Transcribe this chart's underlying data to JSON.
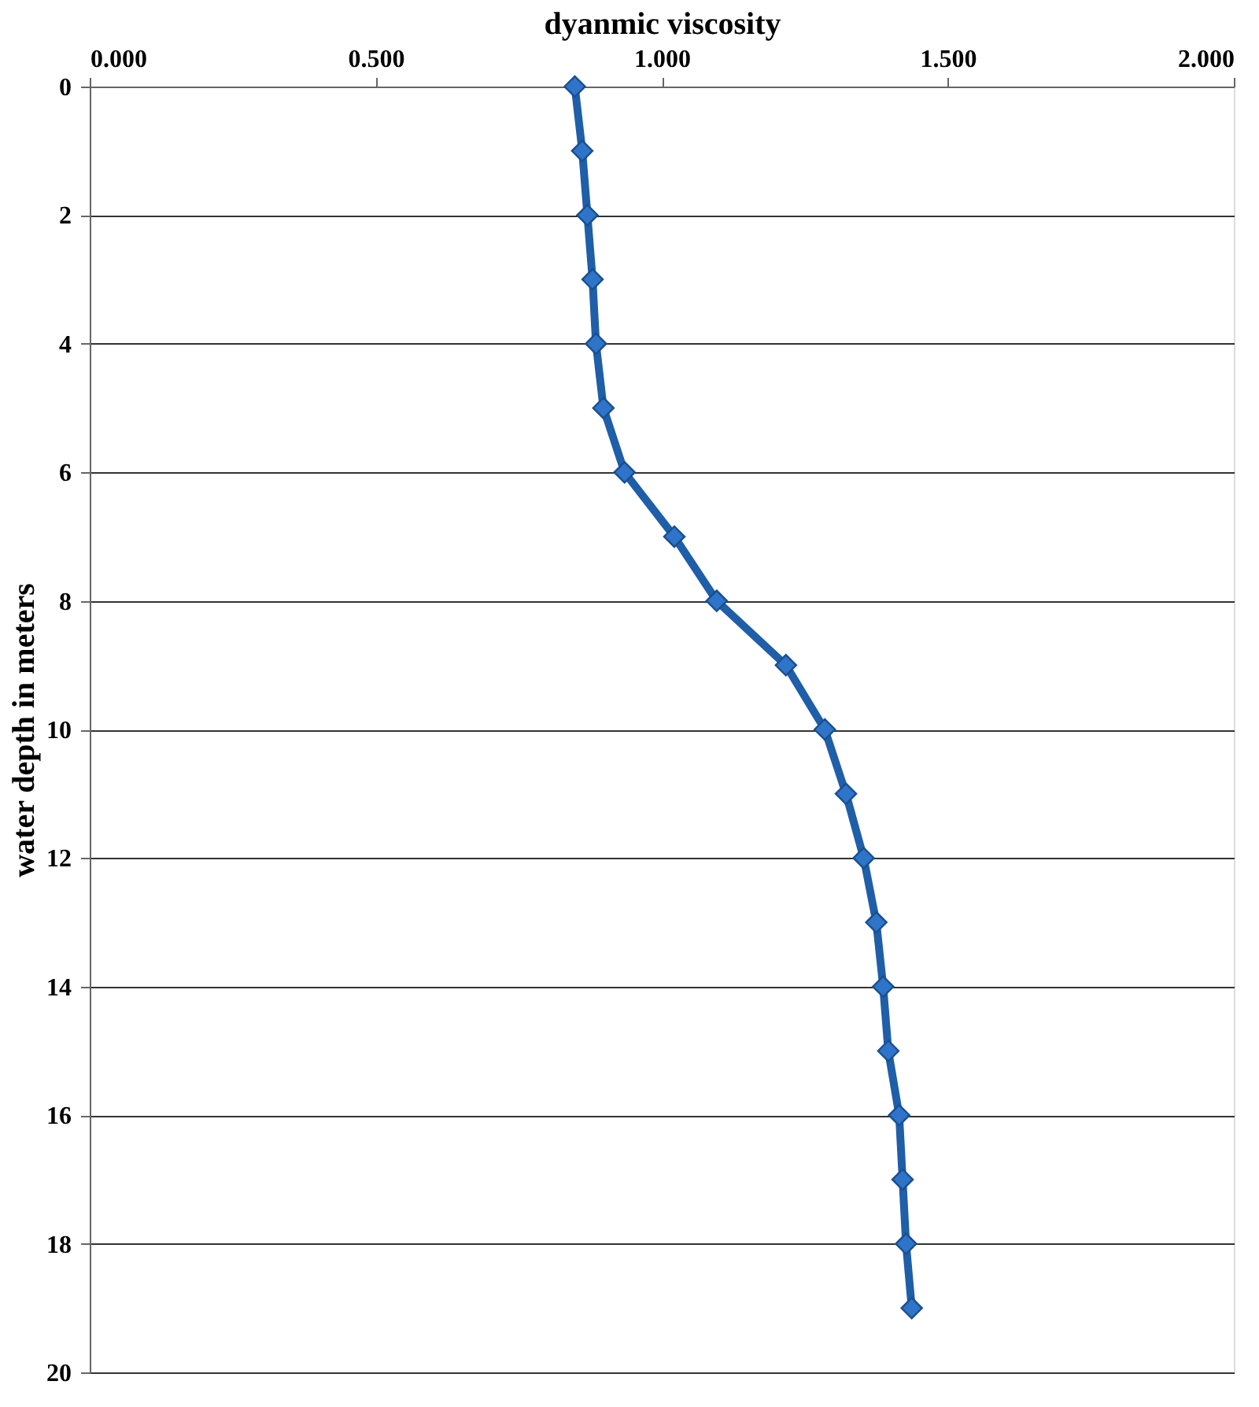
{
  "chart_data": {
    "type": "line",
    "xlabel": "dyanmic viscosity",
    "ylabel": "water depth in meters",
    "x": [
      0.848,
      0.861,
      0.87,
      0.879,
      0.885,
      0.898,
      0.935,
      1.022,
      1.096,
      1.217,
      1.285,
      1.322,
      1.353,
      1.375,
      1.387,
      1.396,
      1.415,
      1.421,
      1.427,
      1.437
    ],
    "series": [
      {
        "color": "#1f5ea8",
        "values": [
          0,
          1,
          2,
          3,
          4,
          5,
          6,
          7,
          8,
          9,
          10,
          11,
          12,
          13,
          14,
          15,
          16,
          17,
          18,
          19
        ]
      }
    ],
    "xlim": [
      0,
      2
    ],
    "xticks": [
      {
        "value": 0,
        "label": "0.000"
      },
      {
        "value": 0.5,
        "label": "0.500"
      },
      {
        "value": 1,
        "label": "1.000"
      },
      {
        "value": 1.5,
        "label": "1.500"
      },
      {
        "value": 2,
        "label": "2.000"
      }
    ],
    "ylim": [
      20,
      0
    ],
    "yticks": [
      0,
      2,
      4,
      6,
      8,
      10,
      12,
      14,
      16,
      18,
      20
    ],
    "grid": "y",
    "marker": "diamond",
    "line_style": "solid"
  }
}
